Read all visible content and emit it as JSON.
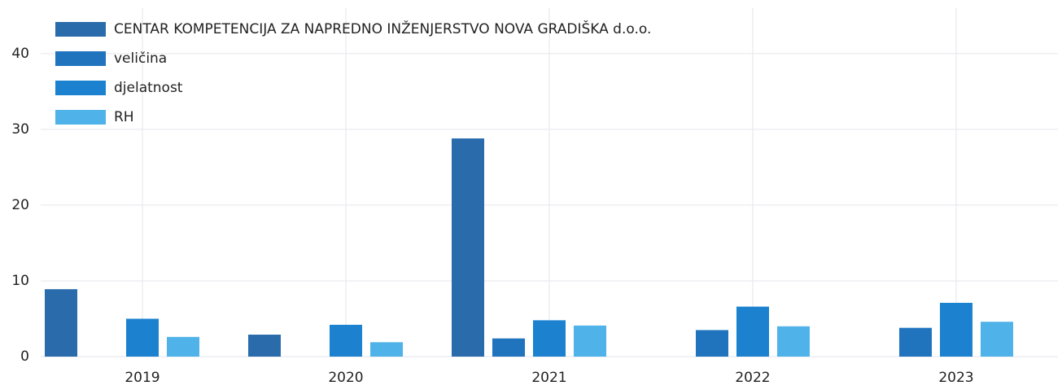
{
  "chart_data": {
    "type": "bar",
    "categories": [
      "2019",
      "2020",
      "2021",
      "2022",
      "2023"
    ],
    "series": [
      {
        "name": "CENTAR KOMPETENCIJA ZA NAPREDNO INŽENJERSTVO NOVA GRADIŠKA d.o.o.",
        "color": "#2a6cab",
        "values": [
          8.9,
          2.9,
          28.8,
          null,
          null
        ]
      },
      {
        "name": "veličina",
        "color": "#1f74bd",
        "values": [
          null,
          null,
          2.4,
          3.5,
          3.8
        ]
      },
      {
        "name": "djelatnost",
        "color": "#1c82cf",
        "values": [
          5.0,
          4.2,
          4.8,
          6.6,
          7.1
        ]
      },
      {
        "name": "RH",
        "color": "#4fb2e8",
        "values": [
          2.6,
          1.9,
          4.1,
          4.0,
          4.6
        ]
      }
    ],
    "ylim": [
      0,
      46
    ],
    "yticks": [
      0,
      10,
      20,
      30,
      40
    ],
    "grid": true,
    "legend": "top-left"
  }
}
